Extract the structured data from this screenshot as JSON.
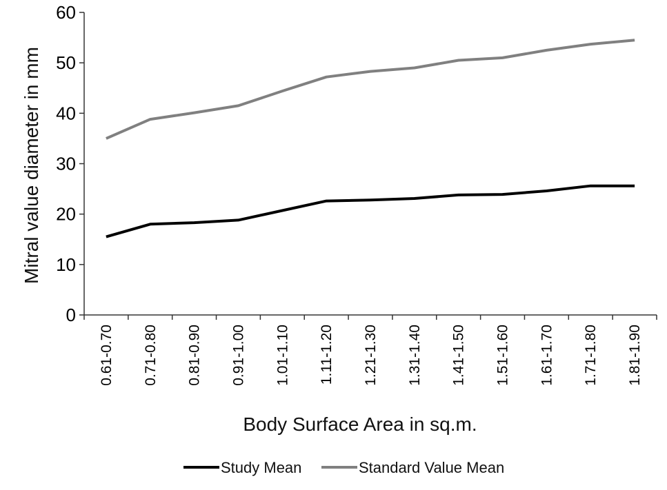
{
  "chart_data": {
    "type": "line",
    "title": "",
    "xlabel": "Body Surface Area in sq.m.",
    "ylabel": "Mitral value diameter in mm",
    "ylim": [
      0,
      60
    ],
    "yticks": [
      0,
      10,
      20,
      30,
      40,
      50,
      60
    ],
    "grid": false,
    "legend_position": "bottom",
    "categories": [
      "0.61-0.70",
      "0.71-0.80",
      "0.81-0.90",
      "0.91-1.00",
      "1.01-1.10",
      "1.11-1.20",
      "1.21-1.30",
      "1.31-1.40",
      "1.41-1.50",
      "1.51-1.60",
      "1.61-1.70",
      "1.71-1.80",
      "1.81-1.90"
    ],
    "series": [
      {
        "name": "Study Mean",
        "color": "#000000",
        "values": [
          15.5,
          18.0,
          18.3,
          18.8,
          20.7,
          22.6,
          22.8,
          23.1,
          23.8,
          23.9,
          24.6,
          25.6,
          25.6
        ]
      },
      {
        "name": "Standard Value Mean",
        "color": "#808080",
        "values": [
          35.0,
          38.8,
          40.1,
          41.5,
          44.4,
          47.2,
          48.3,
          49.0,
          50.5,
          51.0,
          52.5,
          53.7,
          54.5
        ]
      }
    ]
  }
}
